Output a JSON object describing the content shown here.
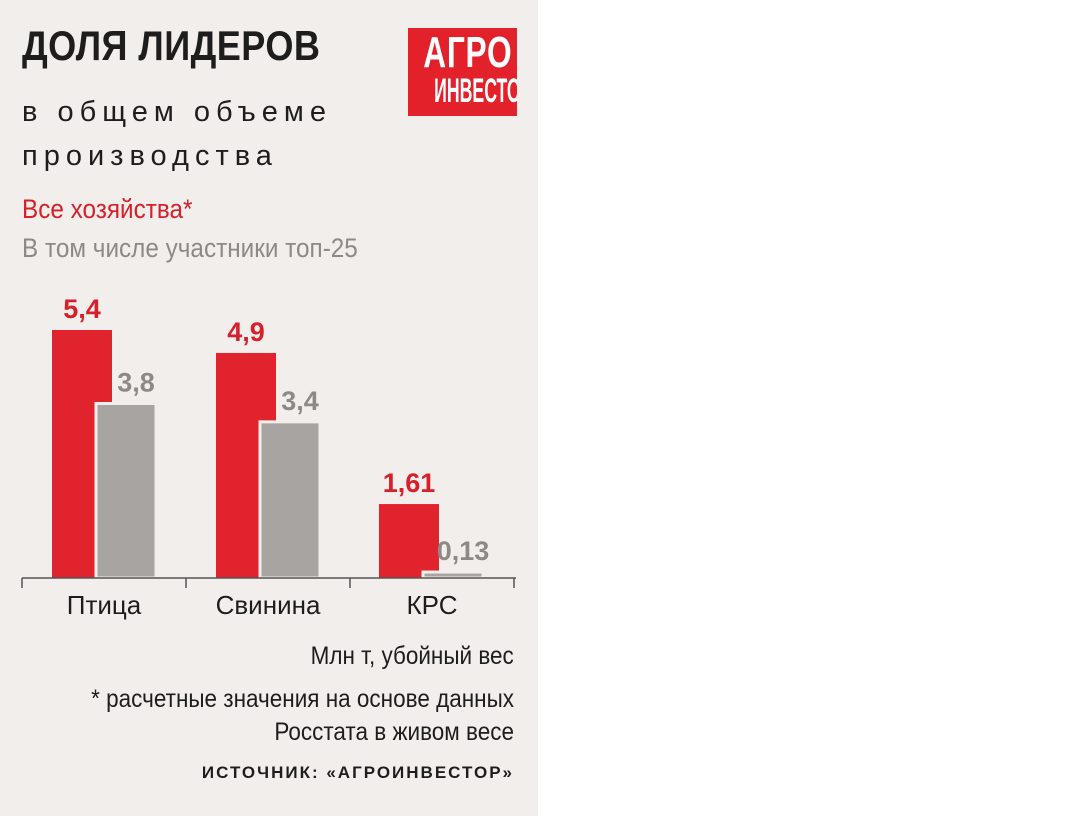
{
  "header": {
    "title": "ДОЛЯ ЛИДЕРОВ",
    "subtitle_line1": "в общем объеме",
    "subtitle_line2": "производства"
  },
  "logo": {
    "line1": "АГРО",
    "line2": "ИНВЕСТОР"
  },
  "colors": {
    "red": "#e0232d",
    "grey": "#a8a4a1",
    "background": "#f2eeeb"
  },
  "chart_data": {
    "type": "bar",
    "categories": [
      "Птица",
      "Свинина",
      "КРС"
    ],
    "series": [
      {
        "name": "Все хозяйства*",
        "values": [
          5.4,
          4.9,
          1.61
        ],
        "labels": [
          "5,4",
          "4,9",
          "1,61"
        ],
        "color": "#e0232d"
      },
      {
        "name": "В том числе участники топ-25",
        "values": [
          3.8,
          3.4,
          0.13
        ],
        "labels": [
          "3,8",
          "3,4",
          "0,13"
        ],
        "color": "#a8a4a1"
      }
    ],
    "ylim": [
      0,
      5.4
    ],
    "grid": false,
    "legend": "top-left"
  },
  "footer": {
    "unit": "Млн т, убойный вес",
    "note_line1": "* расчетные значения на основе данных",
    "note_line2": "Росстата в живом весе",
    "source": "ИСТОЧНИК: «АГРОИНВЕСТОР»"
  }
}
